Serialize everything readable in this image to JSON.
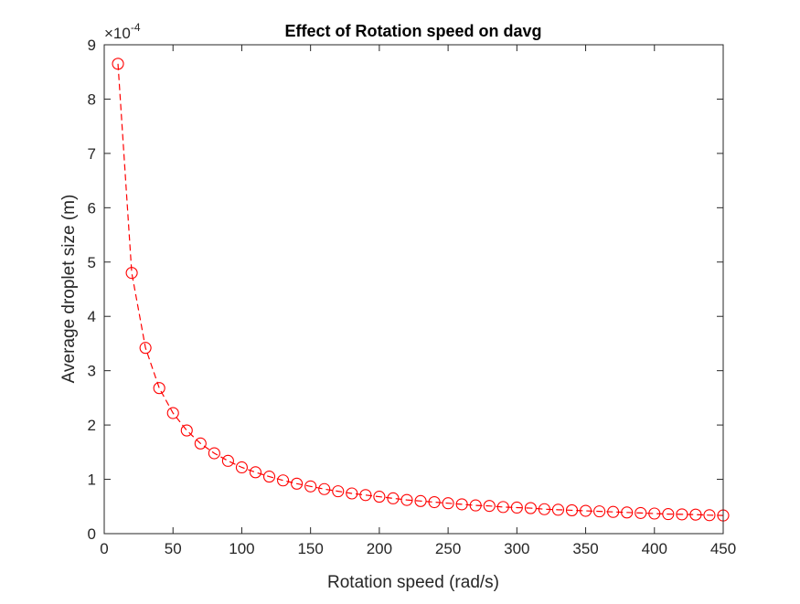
{
  "chart_data": {
    "type": "line",
    "title": "Effect of Rotation speed on davg",
    "xlabel": "Rotation speed (rad/s)",
    "ylabel": "Average droplet size (m)",
    "xlim": [
      0,
      450
    ],
    "ylim": [
      0,
      9
    ],
    "y_multiplier_label": "×10",
    "y_multiplier_exponent": "-4",
    "x_ticks": [
      "0",
      "50",
      "100",
      "150",
      "200",
      "250",
      "300",
      "350",
      "400",
      "450"
    ],
    "y_ticks": [
      "0",
      "1",
      "2",
      "3",
      "4",
      "5",
      "6",
      "7",
      "8",
      "9"
    ],
    "grid": false,
    "series": [
      {
        "color": "#ff0000",
        "line_style": "dashed",
        "marker": "open-circle",
        "x": [
          10,
          20,
          30,
          40,
          50,
          60,
          70,
          80,
          90,
          100,
          110,
          120,
          130,
          140,
          150,
          160,
          170,
          180,
          190,
          200,
          210,
          220,
          230,
          240,
          250,
          260,
          270,
          280,
          290,
          300,
          310,
          320,
          330,
          340,
          350,
          360,
          370,
          380,
          390,
          400,
          410,
          420,
          430,
          440,
          450
        ],
        "y": [
          8.65,
          4.8,
          3.42,
          2.68,
          2.22,
          1.9,
          1.66,
          1.48,
          1.34,
          1.22,
          1.13,
          1.05,
          0.98,
          0.92,
          0.87,
          0.82,
          0.78,
          0.74,
          0.71,
          0.68,
          0.65,
          0.62,
          0.6,
          0.58,
          0.56,
          0.54,
          0.52,
          0.51,
          0.49,
          0.48,
          0.47,
          0.45,
          0.44,
          0.43,
          0.42,
          0.41,
          0.4,
          0.39,
          0.38,
          0.37,
          0.36,
          0.355,
          0.35,
          0.34,
          0.335
        ]
      }
    ]
  }
}
